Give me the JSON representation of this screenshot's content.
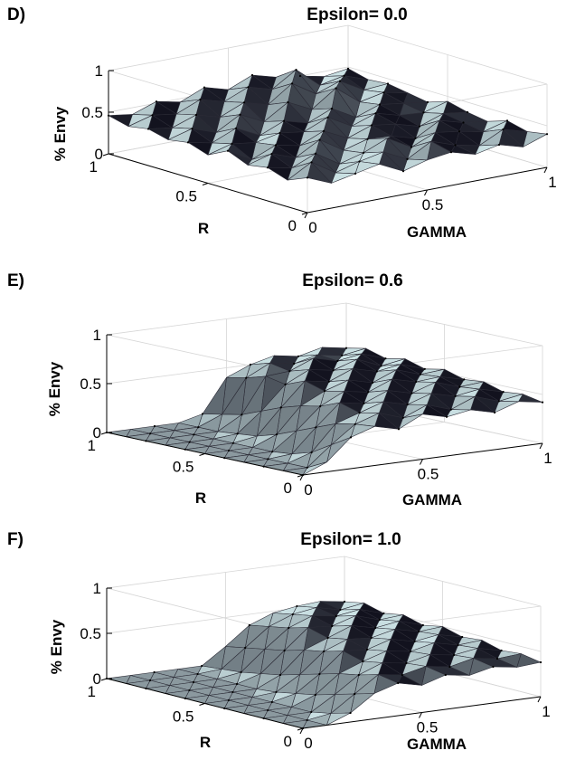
{
  "figure": {
    "panels": [
      {
        "letter": "D)",
        "title": "Epsilon= 0.0",
        "chart_data": {
          "type": "surface",
          "title": "Epsilon= 0.0",
          "xlabel": "GAMMA",
          "ylabel": "R",
          "zlabel": "% Envy",
          "xlim": [
            0,
            1
          ],
          "ylim": [
            0,
            1
          ],
          "zlim": [
            0,
            1
          ],
          "xticks": [
            "0",
            "0.5",
            "1"
          ],
          "yticks": [
            "0",
            "0.5",
            "1"
          ],
          "zticks": [
            "0",
            "0.5",
            "1"
          ],
          "grid": true,
          "gamma": [
            0,
            0.1,
            0.2,
            0.3,
            0.4,
            0.5,
            0.6,
            0.7,
            0.8,
            0.9,
            1.0
          ],
          "r": [
            0,
            0.1,
            0.2,
            0.3,
            0.4,
            0.5,
            0.6,
            0.7,
            0.8,
            0.9,
            1.0
          ],
          "envy": [
            [
              0.42,
              0.3,
              0.36,
              0.42,
              0.28,
              0.36,
              0.4,
              0.32,
              0.38,
              0.3,
              0.4
            ],
            [
              0.32,
              0.48,
              0.3,
              0.38,
              0.44,
              0.3,
              0.46,
              0.36,
              0.3,
              0.44,
              0.36
            ],
            [
              0.4,
              0.34,
              0.46,
              0.28,
              0.36,
              0.48,
              0.32,
              0.44,
              0.4,
              0.34,
              0.42
            ],
            [
              0.36,
              0.44,
              0.34,
              0.5,
              0.32,
              0.4,
              0.38,
              0.3,
              0.46,
              0.38,
              0.34
            ],
            [
              0.46,
              0.3,
              0.42,
              0.36,
              0.48,
              0.34,
              0.44,
              0.4,
              0.32,
              0.42,
              0.38
            ],
            [
              0.34,
              0.42,
              0.38,
              0.44,
              0.4,
              0.52,
              0.36,
              0.46,
              0.38,
              0.36,
              0.44
            ],
            [
              0.42,
              0.36,
              0.48,
              0.34,
              0.46,
              0.38,
              0.5,
              0.34,
              0.44,
              0.4,
              0.36
            ],
            [
              0.38,
              0.46,
              0.36,
              0.52,
              0.38,
              0.56,
              0.42,
              0.62,
              0.4,
              0.46,
              0.4
            ],
            [
              0.44,
              0.4,
              0.5,
              0.42,
              0.54,
              0.46,
              0.66,
              0.48,
              0.58,
              0.42,
              0.44
            ],
            [
              0.4,
              0.48,
              0.44,
              0.56,
              0.48,
              0.6,
              0.52,
              0.7,
              0.46,
              0.52,
              0.42
            ],
            [
              0.46,
              0.42,
              0.52,
              0.46,
              0.58,
              0.5,
              0.62,
              0.54,
              0.5,
              0.44,
              0.48
            ]
          ]
        }
      },
      {
        "letter": "E)",
        "title": "Epsilon= 0.6",
        "chart_data": {
          "type": "surface",
          "title": "Epsilon= 0.6",
          "xlabel": "GAMMA",
          "ylabel": "R",
          "zlabel": "% Envy",
          "xlim": [
            0,
            1
          ],
          "ylim": [
            0,
            1
          ],
          "zlim": [
            0,
            1
          ],
          "xticks": [
            "0",
            "0.5",
            "1"
          ],
          "yticks": [
            "0",
            "0.5",
            "1"
          ],
          "zticks": [
            "0",
            "0.5",
            "1"
          ],
          "grid": true,
          "gamma": [
            0,
            0.1,
            0.2,
            0.3,
            0.4,
            0.5,
            0.6,
            0.7,
            0.8,
            0.9,
            1.0
          ],
          "r": [
            0,
            0.1,
            0.2,
            0.3,
            0.4,
            0.5,
            0.6,
            0.7,
            0.8,
            0.9,
            1.0
          ],
          "envy": [
            [
              0.0,
              0.1,
              0.32,
              0.4,
              0.34,
              0.46,
              0.4,
              0.44,
              0.38,
              0.46,
              0.42
            ],
            [
              0.0,
              0.0,
              0.2,
              0.38,
              0.46,
              0.38,
              0.48,
              0.4,
              0.5,
              0.42,
              0.46
            ],
            [
              0.0,
              0.0,
              0.08,
              0.34,
              0.42,
              0.5,
              0.44,
              0.52,
              0.46,
              0.5,
              0.44
            ],
            [
              0.0,
              0.0,
              0.02,
              0.26,
              0.48,
              0.44,
              0.54,
              0.48,
              0.56,
              0.48,
              0.5
            ],
            [
              0.0,
              0.0,
              0.0,
              0.18,
              0.4,
              0.52,
              0.48,
              0.58,
              0.52,
              0.54,
              0.48
            ],
            [
              0.0,
              0.0,
              0.0,
              0.1,
              0.36,
              0.48,
              0.56,
              0.5,
              0.6,
              0.52,
              0.54
            ],
            [
              0.0,
              0.0,
              0.0,
              0.04,
              0.3,
              0.54,
              0.5,
              0.6,
              0.54,
              0.58,
              0.5
            ],
            [
              0.0,
              0.0,
              0.0,
              0.02,
              0.22,
              0.46,
              0.58,
              0.54,
              0.62,
              0.52,
              0.56
            ],
            [
              0.0,
              0.0,
              0.0,
              0.0,
              0.14,
              0.5,
              0.52,
              0.62,
              0.56,
              0.6,
              0.52
            ],
            [
              0.0,
              0.0,
              0.0,
              0.0,
              0.1,
              0.44,
              0.56,
              0.52,
              0.58,
              0.54,
              0.58
            ],
            [
              0.0,
              0.0,
              0.0,
              0.0,
              0.06,
              0.4,
              0.5,
              0.56,
              0.52,
              0.58,
              0.54
            ]
          ]
        }
      },
      {
        "letter": "F)",
        "title": "Epsilon= 1.0",
        "chart_data": {
          "type": "surface",
          "title": "Epsilon= 1.0",
          "xlabel": "GAMMA",
          "ylabel": "R",
          "zlabel": "% Envy",
          "xlim": [
            0,
            1
          ],
          "ylim": [
            0,
            1
          ],
          "zlim": [
            0,
            1
          ],
          "xticks": [
            "0",
            "0.5",
            "1"
          ],
          "yticks": [
            "0",
            "0.5",
            "1"
          ],
          "zticks": [
            "0",
            "0.5",
            "1"
          ],
          "grid": true,
          "gamma": [
            0,
            0.1,
            0.2,
            0.3,
            0.4,
            0.5,
            0.6,
            0.7,
            0.8,
            0.9,
            1.0
          ],
          "r": [
            0,
            0.1,
            0.2,
            0.3,
            0.4,
            0.5,
            0.6,
            0.7,
            0.8,
            0.9,
            1.0
          ],
          "envy": [
            [
              0.0,
              0.0,
              0.1,
              0.28,
              0.36,
              0.3,
              0.38,
              0.34,
              0.4,
              0.36,
              0.38
            ],
            [
              0.0,
              0.0,
              0.04,
              0.22,
              0.4,
              0.36,
              0.42,
              0.38,
              0.44,
              0.4,
              0.42
            ],
            [
              0.0,
              0.0,
              0.0,
              0.16,
              0.34,
              0.44,
              0.4,
              0.46,
              0.42,
              0.46,
              0.4
            ],
            [
              0.0,
              0.0,
              0.0,
              0.1,
              0.3,
              0.4,
              0.48,
              0.44,
              0.5,
              0.44,
              0.46
            ],
            [
              0.0,
              0.0,
              0.0,
              0.06,
              0.24,
              0.46,
              0.44,
              0.52,
              0.46,
              0.5,
              0.44
            ],
            [
              0.0,
              0.0,
              0.0,
              0.02,
              0.18,
              0.4,
              0.5,
              0.48,
              0.54,
              0.48,
              0.5
            ],
            [
              0.0,
              0.0,
              0.0,
              0.0,
              0.12,
              0.36,
              0.46,
              0.56,
              0.5,
              0.54,
              0.46
            ],
            [
              0.0,
              0.0,
              0.0,
              0.0,
              0.08,
              0.3,
              0.52,
              0.5,
              0.58,
              0.5,
              0.52
            ],
            [
              0.0,
              0.0,
              0.0,
              0.0,
              0.04,
              0.26,
              0.46,
              0.56,
              0.52,
              0.56,
              0.48
            ],
            [
              0.0,
              0.0,
              0.0,
              0.0,
              0.02,
              0.22,
              0.42,
              0.52,
              0.56,
              0.5,
              0.54
            ],
            [
              0.0,
              0.0,
              0.0,
              0.0,
              0.0,
              0.18,
              0.38,
              0.48,
              0.52,
              0.54,
              0.5
            ]
          ]
        }
      }
    ]
  }
}
